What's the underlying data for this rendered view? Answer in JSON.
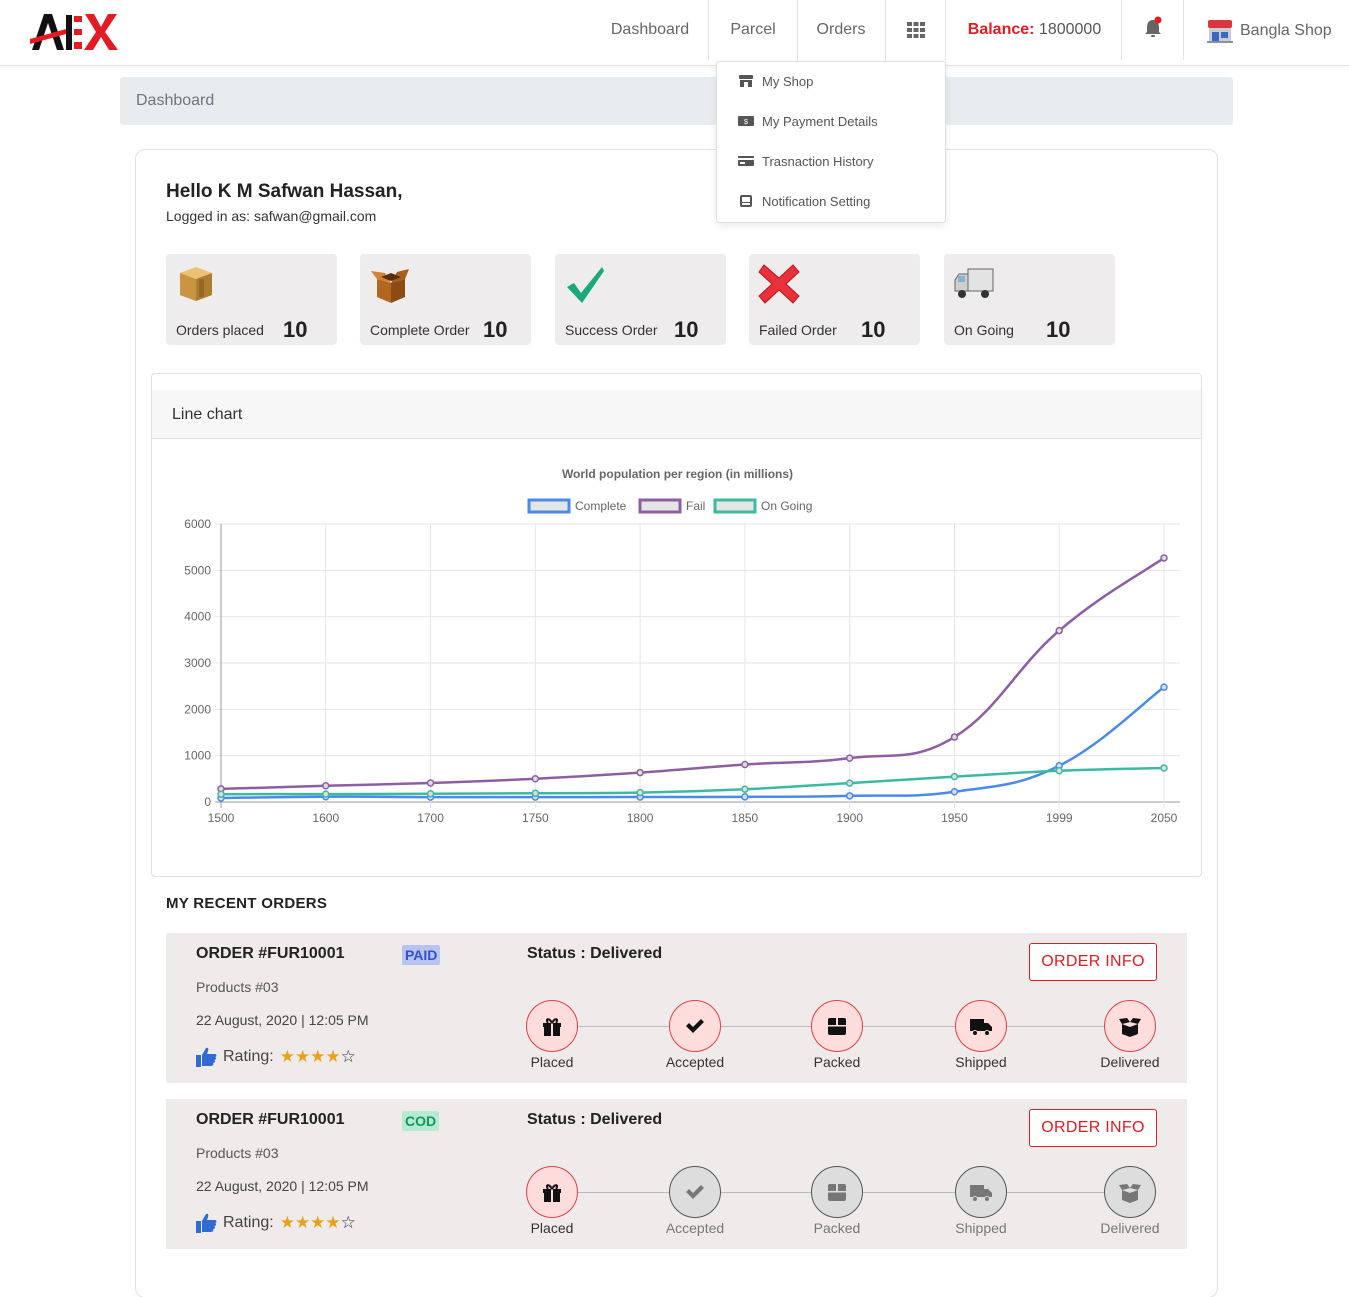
{
  "nav": {
    "brand": "ABEX",
    "items": [
      "Dashboard",
      "Parcel",
      "Orders"
    ],
    "balance_label": "Balance:",
    "balance_value": "1800000",
    "shop_name": "Bangla Shop"
  },
  "dropdown": {
    "items": [
      "My Shop",
      "My Payment Details",
      "Trasnaction History",
      "Notification Setting"
    ]
  },
  "breadcrumb": "Dashboard",
  "greeting": {
    "hello": "Hello K M Safwan Hassan,",
    "logged_in": "Logged in as: safwan@gmail.com"
  },
  "stats": [
    {
      "label": "Orders placed",
      "value": "10",
      "icon": "box-icon"
    },
    {
      "label": "Complete Order",
      "value": "10",
      "icon": "open-box-icon"
    },
    {
      "label": "Success Order",
      "value": "10",
      "icon": "checkmark-icon"
    },
    {
      "label": "Failed Order",
      "value": "10",
      "icon": "cross-icon"
    },
    {
      "label": "On Going",
      "value": "10",
      "icon": "truck-icon"
    }
  ],
  "chart_card_title": "Line chart",
  "chart_data": {
    "type": "line",
    "title": "World population per region (in millions)",
    "x": [
      "1500",
      "1600",
      "1700",
      "1750",
      "1800",
      "1850",
      "1900",
      "1950",
      "1999",
      "2050"
    ],
    "ylim": [
      0,
      6000
    ],
    "yticks": [
      0,
      1000,
      2000,
      3000,
      4000,
      5000,
      6000
    ],
    "grid": true,
    "legend": "top-center",
    "series": [
      {
        "name": "Complete",
        "color": "#4a8ae8",
        "values": [
          86,
          114,
          106,
          106,
          107,
          111,
          133,
          221,
          783,
          2478
        ]
      },
      {
        "name": "Fail",
        "color": "#8e5ea2",
        "values": [
          282,
          350,
          411,
          502,
          635,
          809,
          947,
          1402,
          3700,
          5267
        ]
      },
      {
        "name": "On Going",
        "color": "#3cba9f",
        "values": [
          168,
          170,
          178,
          190,
          203,
          276,
          408,
          547,
          675,
          734
        ]
      }
    ]
  },
  "recent_orders_title": "MY RECENT ORDERS",
  "orders": [
    {
      "id": "ORDER #FUR10001",
      "badge": "PAID",
      "products": "Products #03",
      "date": "22 August, 2020 | 12:05 PM",
      "rating_label": "Rating:",
      "rating": 4,
      "status": "Status : Delivered",
      "button": "ORDER INFO",
      "steps": [
        {
          "label": "Placed",
          "done": true
        },
        {
          "label": "Accepted",
          "done": true
        },
        {
          "label": "Packed",
          "done": true
        },
        {
          "label": "Shipped",
          "done": true
        },
        {
          "label": "Delivered",
          "done": true
        }
      ]
    },
    {
      "id": "ORDER #FUR10001",
      "badge": "COD",
      "products": "Products #03",
      "date": "22 August, 2020 | 12:05 PM",
      "rating_label": "Rating:",
      "rating": 4,
      "status": "Status : Delivered",
      "button": "ORDER INFO",
      "steps": [
        {
          "label": "Placed",
          "done": true
        },
        {
          "label": "Accepted",
          "done": false
        },
        {
          "label": "Packed",
          "done": false
        },
        {
          "label": "Shipped",
          "done": false
        },
        {
          "label": "Delivered",
          "done": false
        }
      ]
    }
  ]
}
